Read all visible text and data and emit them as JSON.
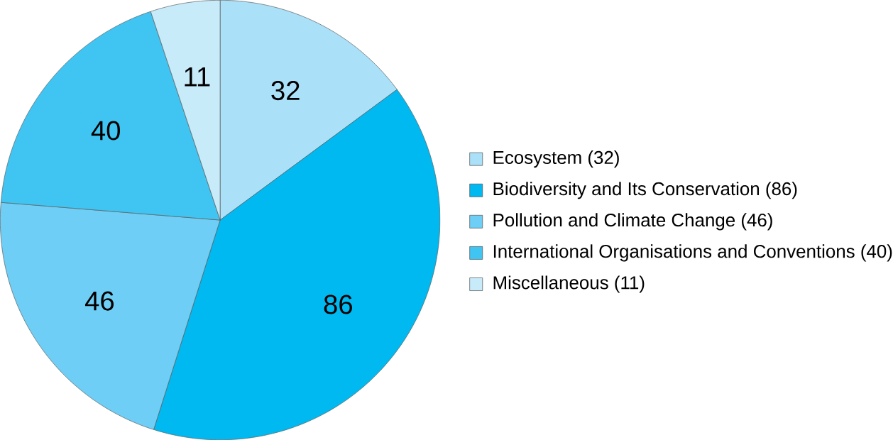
{
  "chart_data": {
    "type": "pie",
    "categories": [
      "Ecosystem (32)",
      "Biodiversity and Its Conservation (86)",
      "Pollution and Climate Change (46)",
      "International Organisations and Conventions (40)",
      "Miscellaneous (11)"
    ],
    "values": [
      32,
      86,
      46,
      40,
      11
    ],
    "colors": [
      "#aae0f8",
      "#00b9f1",
      "#6ecef5",
      "#40c5f3",
      "#c8ebfa"
    ],
    "data_labels": true,
    "legend": "right"
  }
}
